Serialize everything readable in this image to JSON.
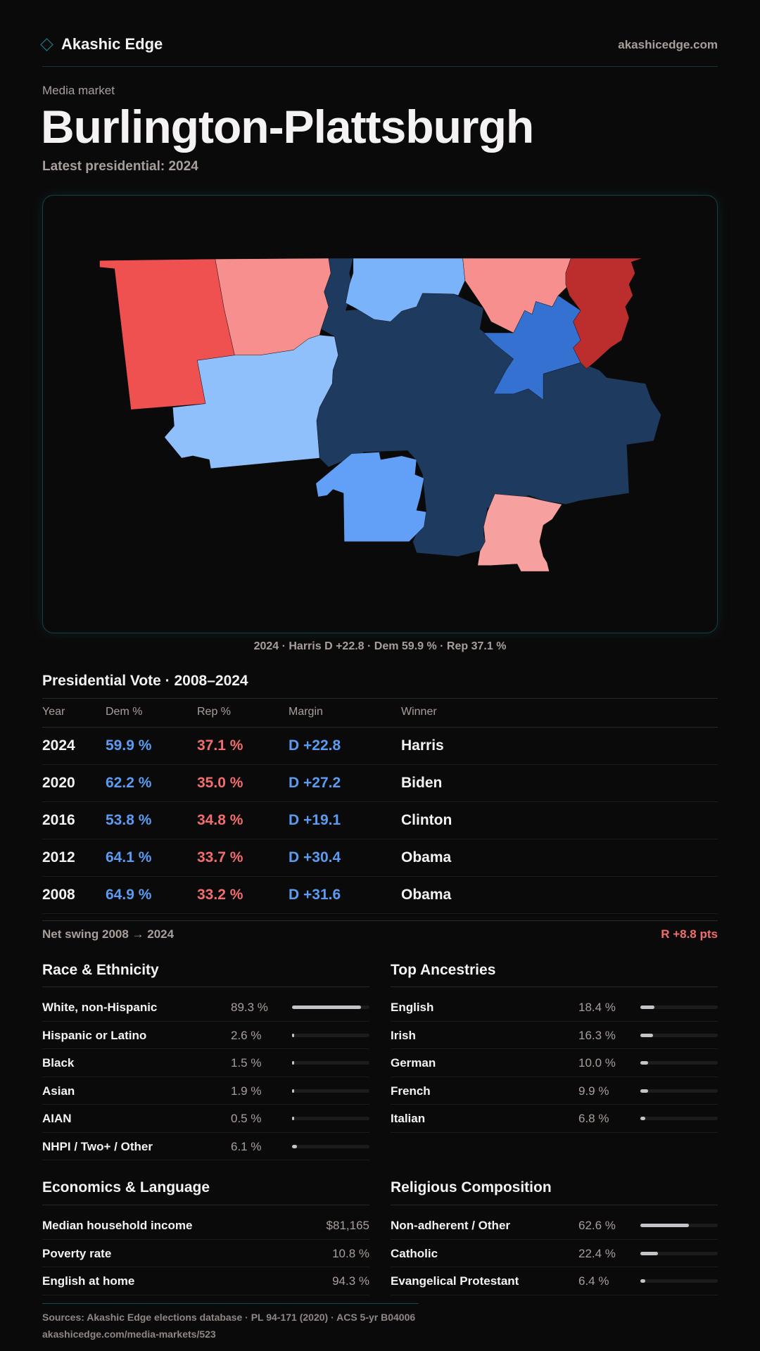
{
  "header": {
    "brand": "Akashic Edge",
    "site": "akashicedge.com"
  },
  "kicker": "Media market",
  "title": "Burlington-Plattsburgh",
  "latest": "Latest presidential: 2024",
  "map": {
    "caption": "2024 · Harris D +22.8 · Dem 59.9 % · Rep 37.1 %",
    "colors": {
      "strong_r": "#ef5050",
      "lean_r": "#f78f8f",
      "likely_r": "#bc2e2e",
      "light_d": "#90c0fb",
      "lean_d": "#7ab3f9",
      "mid_d": "#62a0f7",
      "med_d": "#3571d0",
      "solid_d": "#1e3a5f",
      "soft_r": "#f7a0a0"
    }
  },
  "vote": {
    "heading": "Presidential Vote · 2008–2024",
    "columns": [
      "Year",
      "Dem %",
      "Rep %",
      "Margin",
      "Winner"
    ],
    "rows": [
      {
        "year": "2024",
        "dem": "59.9 %",
        "rep": "37.1 %",
        "margin": "D +22.8",
        "winner": "Harris"
      },
      {
        "year": "2020",
        "dem": "62.2 %",
        "rep": "35.0 %",
        "margin": "D +27.2",
        "winner": "Biden"
      },
      {
        "year": "2016",
        "dem": "53.8 %",
        "rep": "34.8 %",
        "margin": "D +19.1",
        "winner": "Clinton"
      },
      {
        "year": "2012",
        "dem": "64.1 %",
        "rep": "33.7 %",
        "margin": "D +30.4",
        "winner": "Obama"
      },
      {
        "year": "2008",
        "dem": "64.9 %",
        "rep": "33.2 %",
        "margin": "D +31.6",
        "winner": "Obama"
      }
    ],
    "swing_label": "Net swing 2008 → 2024",
    "swing_value": "R +8.8 pts"
  },
  "race": {
    "heading": "Race & Ethnicity",
    "rows": [
      {
        "label": "White, non-Hispanic",
        "value": "89.3 %",
        "pct": 89.3
      },
      {
        "label": "Hispanic or Latino",
        "value": "2.6 %",
        "pct": 2.6
      },
      {
        "label": "Black",
        "value": "1.5 %",
        "pct": 1.5
      },
      {
        "label": "Asian",
        "value": "1.9 %",
        "pct": 1.9
      },
      {
        "label": "AIAN",
        "value": "0.5 %",
        "pct": 0.5
      },
      {
        "label": "NHPI / Two+ / Other",
        "value": "6.1 %",
        "pct": 6.1
      }
    ]
  },
  "ancestry": {
    "heading": "Top Ancestries",
    "rows": [
      {
        "label": "English",
        "value": "18.4 %",
        "pct": 18.4
      },
      {
        "label": "Irish",
        "value": "16.3 %",
        "pct": 16.3
      },
      {
        "label": "German",
        "value": "10.0 %",
        "pct": 10.0
      },
      {
        "label": "French",
        "value": "9.9 %",
        "pct": 9.9
      },
      {
        "label": "Italian",
        "value": "6.8 %",
        "pct": 6.8
      }
    ]
  },
  "econ": {
    "heading": "Economics & Language",
    "rows": [
      {
        "label": "Median household income",
        "value": "$81,165"
      },
      {
        "label": "Poverty rate",
        "value": "10.8 %"
      },
      {
        "label": "English at home",
        "value": "94.3 %"
      }
    ]
  },
  "religion": {
    "heading": "Religious Composition",
    "rows": [
      {
        "label": "Non-adherent / Other",
        "value": "62.6 %",
        "pct": 62.6
      },
      {
        "label": "Catholic",
        "value": "22.4 %",
        "pct": 22.4
      },
      {
        "label": "Evangelical Protestant",
        "value": "6.4 %",
        "pct": 6.4
      }
    ]
  },
  "footer": {
    "sources": "Sources: Akashic Edge elections database · PL 94-171 (2020) · ACS 5-yr B04006",
    "url": "akashicedge.com/media-markets/523"
  }
}
